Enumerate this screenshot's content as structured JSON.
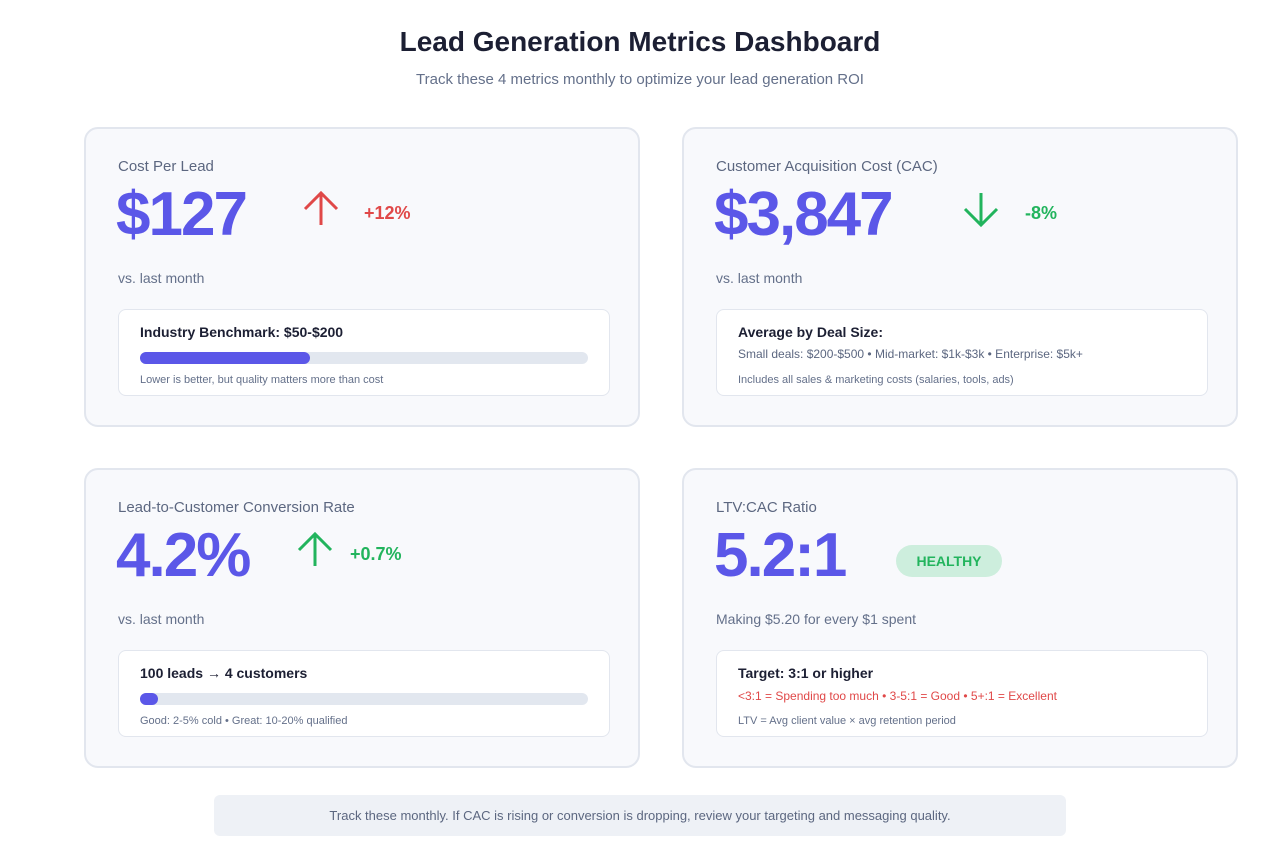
{
  "header": {
    "title": "Lead Generation Metrics Dashboard",
    "subtitle": "Track these 4 metrics monthly to optimize your lead generation ROI"
  },
  "colors": {
    "accent": "#5b57e8",
    "negative": "#e04848",
    "positive": "#22b45d"
  },
  "cards": [
    {
      "label": "Cost Per Lead",
      "value": "$127",
      "trend_icon": "arrow-up-icon",
      "delta": "+12%",
      "delta_color": "#e04848",
      "sub": "vs. last month",
      "box_title": "Industry Benchmark: $50-$200",
      "progress_percent": 38,
      "note": "Lower is better, but quality matters more than cost"
    },
    {
      "label": "Customer Acquisition Cost (CAC)",
      "value": "$3,847",
      "trend_icon": "arrow-down-icon",
      "delta": "-8%",
      "delta_color": "#22b45d",
      "sub": "vs. last month",
      "box_title": "Average by Deal Size:",
      "line2": "Small deals: $200-$500 • Mid-market: $1k-$3k • Enterprise: $5k+",
      "note": "Includes all sales & marketing costs (salaries, tools, ads)"
    },
    {
      "label": "Lead-to-Customer Conversion Rate",
      "value": "4.2%",
      "trend_icon": "arrow-up-icon",
      "delta": "+0.7%",
      "delta_color": "#22b45d",
      "sub": "vs. last month",
      "box_title": "100 leads → 4 customers",
      "progress_percent": 4,
      "note": "Good: 2-5% cold • Great: 10-20% qualified"
    },
    {
      "label": "LTV:CAC Ratio",
      "value": "5.2:1",
      "badge": "HEALTHY",
      "sub": "Making $5.20 for every $1 spent",
      "box_title": "Target: 3:1 or higher",
      "line2": "<3:1 = Spending too much • 3-5:1 = Good • 5+:1 = Excellent",
      "note": "LTV = Avg client value × avg retention period"
    }
  ],
  "footer": "Track these monthly. If CAC is rising or conversion is dropping, review your targeting and messaging quality."
}
